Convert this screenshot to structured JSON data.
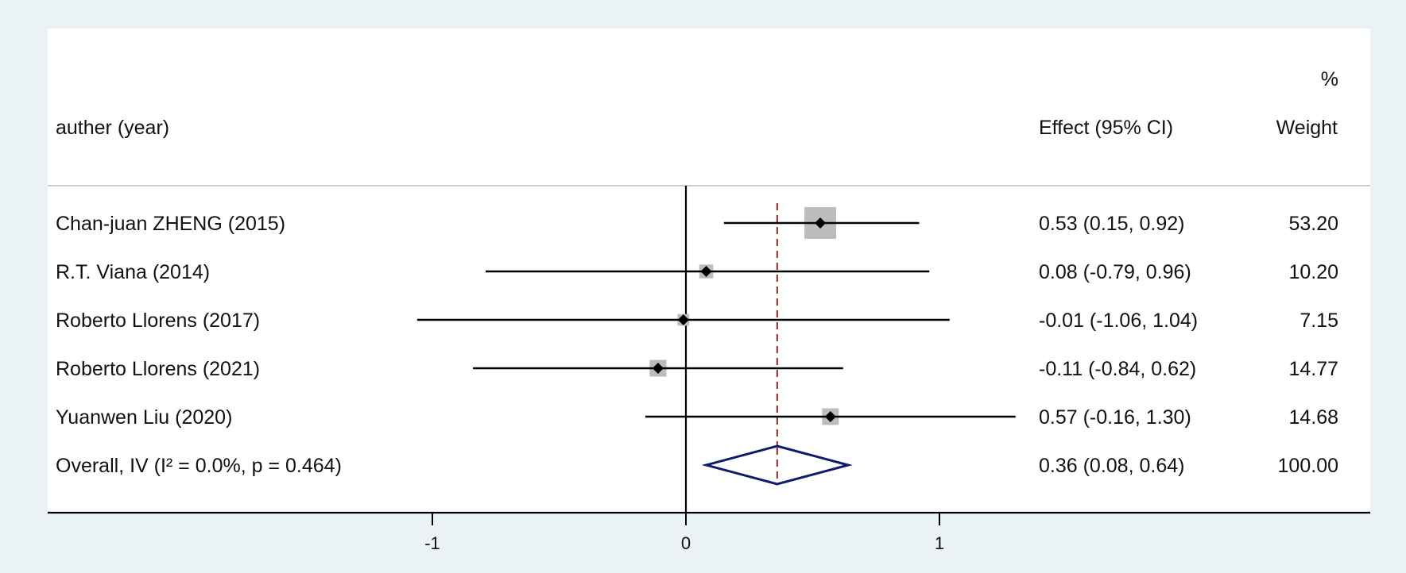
{
  "chart_data": {
    "type": "forest",
    "title": "",
    "xlabel": "",
    "header": {
      "study_label": "auther (year)",
      "effect_label": "Effect (95% CI)",
      "weight_label_top": "%",
      "weight_label": "Weight"
    },
    "xlim": [
      -1.25,
      1.5
    ],
    "x_ticks": [
      -1,
      0,
      1
    ],
    "x_tick_labels": [
      "-1",
      "0",
      "1"
    ],
    "null_line": 0,
    "studies": [
      {
        "label": "Chan-juan ZHENG (2015)",
        "effect": 0.53,
        "lower": 0.15,
        "upper": 0.92,
        "weight": 53.2,
        "effect_text": "0.53 (0.15, 0.92)",
        "weight_text": "53.20"
      },
      {
        "label": "R.T. Viana (2014)",
        "effect": 0.08,
        "lower": -0.79,
        "upper": 0.96,
        "weight": 10.2,
        "effect_text": "0.08 (-0.79, 0.96)",
        "weight_text": "10.20"
      },
      {
        "label": "Roberto Llorens (2017)",
        "effect": -0.01,
        "lower": -1.06,
        "upper": 1.04,
        "weight": 7.15,
        "effect_text": "-0.01 (-1.06, 1.04)",
        "weight_text": "7.15"
      },
      {
        "label": "Roberto Llorens (2021)",
        "effect": -0.11,
        "lower": -0.84,
        "upper": 0.62,
        "weight": 14.77,
        "effect_text": "-0.11 (-0.84, 0.62)",
        "weight_text": "14.77"
      },
      {
        "label": "Yuanwen Liu (2020)",
        "effect": 0.57,
        "lower": -0.16,
        "upper": 1.3,
        "weight": 14.68,
        "effect_text": "0.57 (-0.16, 1.30)",
        "weight_text": "14.68"
      }
    ],
    "overall": {
      "label": "Overall, IV (I² = 0.0%, p = 0.464)",
      "effect": 0.36,
      "lower": 0.08,
      "upper": 0.64,
      "weight": 100.0,
      "effect_text": "0.36 (0.08, 0.64)",
      "weight_text": "100.00"
    },
    "colors": {
      "background": "#eaf2f5",
      "panel": "#ffffff",
      "weight_box": "#bdbdbd",
      "ci_line": "#000000",
      "point": "#000000",
      "overall_line": "#8b2a2a",
      "diamond": "#0d1a6e"
    }
  }
}
